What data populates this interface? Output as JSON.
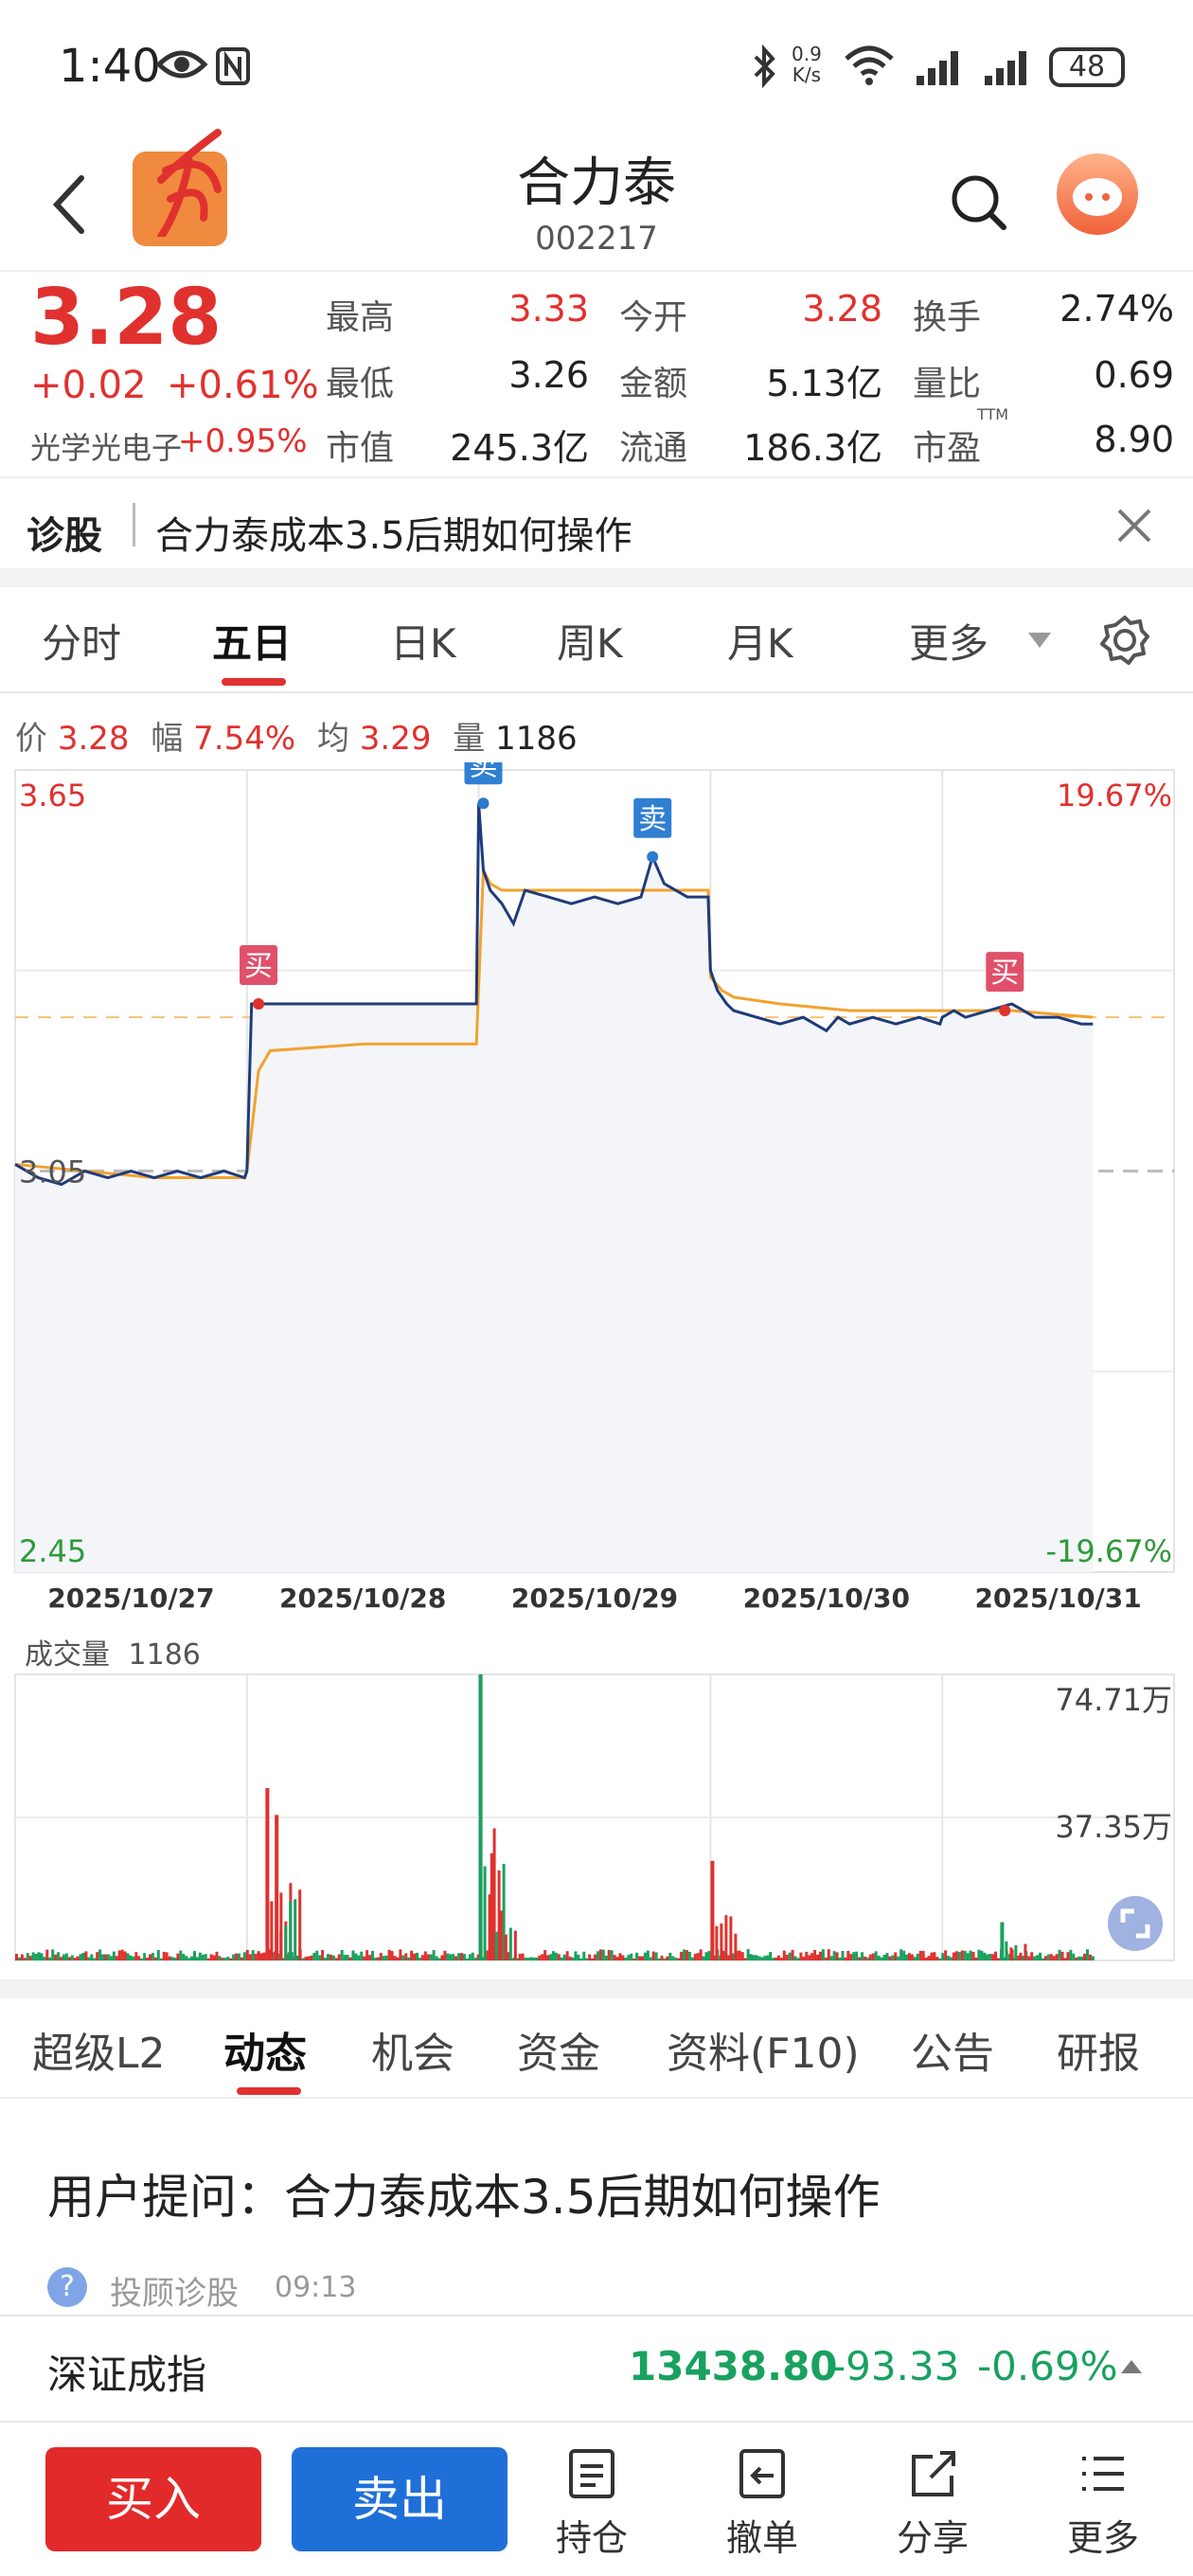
{
  "status_bar": {
    "time": "1:40",
    "net_speed_top": "0.9",
    "net_speed_bottom": "K/s",
    "battery": "48"
  },
  "header": {
    "stock_name": "合力泰",
    "stock_code": "002217"
  },
  "quote": {
    "price": "3.28",
    "change": "+0.02",
    "change_pct": "+0.61%",
    "sector_name": "光学光电子",
    "sector_pct": "+0.95%",
    "grid": [
      {
        "label": "最高",
        "value": "3.33",
        "color": "red"
      },
      {
        "label": "今开",
        "value": "3.28",
        "color": "red"
      },
      {
        "label": "换手",
        "value": "2.74%",
        "color": "dark"
      },
      {
        "label": "最低",
        "value": "3.26",
        "color": "dark"
      },
      {
        "label": "金额",
        "value": "5.13亿",
        "color": "dark"
      },
      {
        "label": "量比",
        "value": "0.69",
        "color": "dark"
      },
      {
        "label": "市值",
        "value": "245.3亿",
        "color": "dark"
      },
      {
        "label": "流通",
        "value": "186.3亿",
        "color": "dark"
      },
      {
        "label": "市盈",
        "value": "8.90",
        "color": "dark"
      }
    ],
    "pe_suffix": "TTM"
  },
  "diagnose": {
    "label": "诊股",
    "text": "合力泰成本3.5后期如何操作"
  },
  "chart_tabs": [
    "分时",
    "五日",
    "日K",
    "周K",
    "月K",
    "更多"
  ],
  "chart_tab_active": 1,
  "chart_info": {
    "price_label": "价",
    "price_value": "3.28",
    "range_label": "幅",
    "range_value": "7.54%",
    "avg_label": "均",
    "avg_value": "3.29",
    "vol_label": "量",
    "vol_value": "1186"
  },
  "chart_data": {
    "type": "line",
    "ylim": [
      2.45,
      3.65
    ],
    "y_top_label": "3.65",
    "y_bottom_label": "2.45",
    "y_mid_label": "3.05",
    "pct_top_label": "19.67%",
    "pct_bottom_label": "-19.67%",
    "dates": [
      "2025/10/27",
      "2025/10/28",
      "2025/10/29",
      "2025/10/30",
      "2025/10/31"
    ],
    "series": [
      {
        "x": [
          0,
          0.1,
          0.2,
          0.3,
          0.4,
          0.5,
          0.6,
          0.7,
          0.8,
          0.9,
          0.99,
          1.0,
          1.02,
          1.1,
          1.3,
          1.5,
          1.7,
          1.99,
          2.0,
          2.02,
          2.05,
          2.1,
          2.15,
          2.2,
          2.3,
          2.4,
          2.5,
          2.6,
          2.7,
          2.75,
          2.8,
          2.85,
          2.9,
          2.99,
          3.0,
          3.03,
          3.07,
          3.1,
          3.2,
          3.3,
          3.4,
          3.5,
          3.55,
          3.6,
          3.7,
          3.8,
          3.9,
          3.99,
          4.0,
          4.05,
          4.1,
          4.2,
          4.3,
          4.35,
          4.4,
          4.5,
          4.6,
          4.65
        ],
        "y": [
          3.06,
          3.04,
          3.03,
          3.05,
          3.04,
          3.05,
          3.04,
          3.05,
          3.04,
          3.05,
          3.04,
          3.05,
          3.3,
          3.3,
          3.3,
          3.3,
          3.3,
          3.3,
          3.6,
          3.5,
          3.47,
          3.45,
          3.42,
          3.47,
          3.46,
          3.45,
          3.46,
          3.45,
          3.46,
          3.52,
          3.48,
          3.47,
          3.46,
          3.46,
          3.35,
          3.32,
          3.3,
          3.29,
          3.28,
          3.27,
          3.28,
          3.26,
          3.28,
          3.27,
          3.28,
          3.27,
          3.28,
          3.27,
          3.28,
          3.29,
          3.28,
          3.29,
          3.3,
          3.29,
          3.28,
          3.28,
          3.27,
          3.27
        ]
      },
      {
        "x": [
          0,
          0.3,
          0.6,
          0.9,
          0.99,
          1.0,
          1.05,
          1.1,
          1.5,
          1.99,
          2.02,
          2.05,
          2.1,
          2.2,
          2.5,
          2.99,
          3.0,
          3.05,
          3.1,
          3.3,
          3.6,
          4.0,
          4.3,
          4.65
        ],
        "y": [
          3.06,
          3.05,
          3.04,
          3.04,
          3.04,
          3.05,
          3.2,
          3.23,
          3.24,
          3.24,
          3.5,
          3.48,
          3.47,
          3.47,
          3.47,
          3.47,
          3.34,
          3.32,
          3.31,
          3.3,
          3.29,
          3.29,
          3.29,
          3.28
        ]
      }
    ],
    "markers": [
      {
        "label": "买",
        "x": 1.05,
        "y": 3.3
      },
      {
        "label": "卖",
        "x": 2.02,
        "y": 3.6
      },
      {
        "label": "卖",
        "x": 2.75,
        "y": 3.52
      },
      {
        "label": "买",
        "x": 4.27,
        "y": 3.29
      }
    ],
    "ref_price": 3.05,
    "volume": {
      "label": "成交量",
      "value": "1186",
      "top_label": "74.71万",
      "mid_label": "37.35万",
      "max": 74.71,
      "peaks": [
        {
          "x": 1.08,
          "v": 45
        },
        {
          "x": 1.12,
          "v": 38
        },
        {
          "x": 2.0,
          "v": 74.71
        },
        {
          "x": 2.05,
          "v": 28
        },
        {
          "x": 3.0,
          "v": 26
        },
        {
          "x": 4.25,
          "v": 10
        }
      ]
    }
  },
  "bottom_tabs": [
    "超级L2",
    "动态",
    "机会",
    "资金",
    "资料(F10)",
    "公告",
    "研报"
  ],
  "bottom_tab_active": 1,
  "feed": {
    "title": "用户提问：合力泰成本3.5后期如何操作",
    "source": "投顾诊股",
    "time": "09:13"
  },
  "index_bar": {
    "name": "深证成指",
    "value": "13438.80",
    "change": "-93.33",
    "pct": "-0.69%"
  },
  "nav": {
    "buy": "买入",
    "sell": "卖出",
    "items": [
      "持仓",
      "撤单",
      "分享",
      "更多"
    ]
  },
  "colors": {
    "red": "#e0312f",
    "green": "#19a15f",
    "blue_btn": "#1f6fd9",
    "price_line": "#1f3b7a",
    "avg_line": "#f2a22e"
  }
}
